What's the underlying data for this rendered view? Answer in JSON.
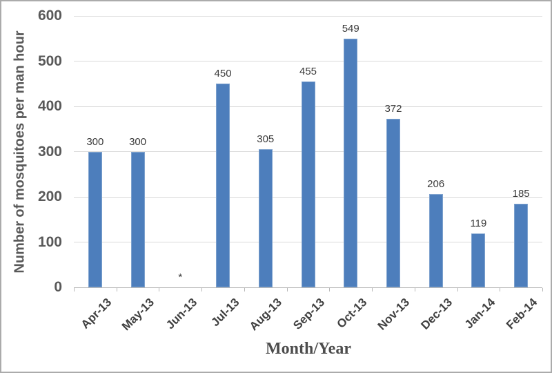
{
  "chart_data": {
    "type": "bar",
    "title": "",
    "categories": [
      "Apr-13",
      "May-13",
      "Jun-13",
      "Jul-13",
      "Aug-13",
      "Sep-13",
      "Oct-13",
      "Nov-13",
      "Dec-13",
      "Jan-14",
      "Feb-14"
    ],
    "values": [
      300,
      300,
      null,
      450,
      305,
      455,
      549,
      372,
      206,
      119,
      185
    ],
    "data_labels": [
      "300",
      "300",
      "*",
      "450",
      "305",
      "455",
      "549",
      "372",
      "206",
      "119",
      "185"
    ],
    "xlabel": "Month/Year",
    "ylabel": "Number of mosquitoes per man hour",
    "ylim": [
      0,
      600
    ],
    "yticks": [
      0,
      100,
      200,
      300,
      400,
      500,
      600
    ],
    "grid": true,
    "legend_position": "none",
    "missing_marker": "*",
    "missing_category": "Jun-13",
    "bar_color": "#4d7ebc",
    "gridline_color": "#d9d9d9",
    "axis_color": "#b7b7b7"
  }
}
